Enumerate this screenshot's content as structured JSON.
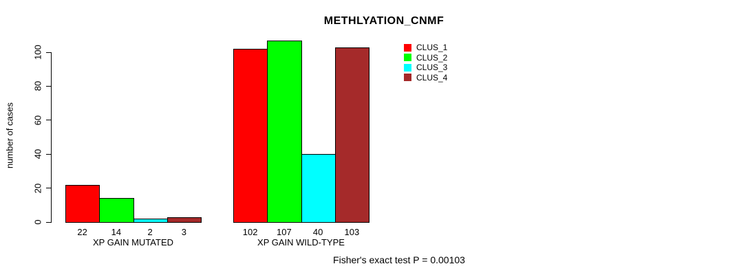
{
  "title": "METHLYATION_CNMF",
  "footer_note": "Fisher's exact test P = 0.00103",
  "chart_data": {
    "type": "bar",
    "title": "METHLYATION_CNMF",
    "ylabel": "number of cases",
    "xlabel": "",
    "ylim": [
      0,
      100
    ],
    "yticks": [
      0,
      20,
      40,
      60,
      80,
      100
    ],
    "grid": false,
    "legend_position": "top-right",
    "categories": [
      "XP GAIN MUTATED",
      "XP GAIN WILD-TYPE"
    ],
    "series": [
      {
        "name": "CLUS_1",
        "color": "#ff0000",
        "values": [
          22,
          102
        ]
      },
      {
        "name": "CLUS_2",
        "color": "#00ff00",
        "values": [
          14,
          107
        ]
      },
      {
        "name": "CLUS_3",
        "color": "#00ffff",
        "values": [
          2,
          40
        ]
      },
      {
        "name": "CLUS_4",
        "color": "#a52a2a",
        "values": [
          3,
          103
        ]
      }
    ],
    "bar_value_labels": [
      [
        22,
        14,
        2,
        3
      ],
      [
        102,
        107,
        40,
        103
      ]
    ],
    "annotation": "Fisher's exact test P = 0.00103"
  }
}
